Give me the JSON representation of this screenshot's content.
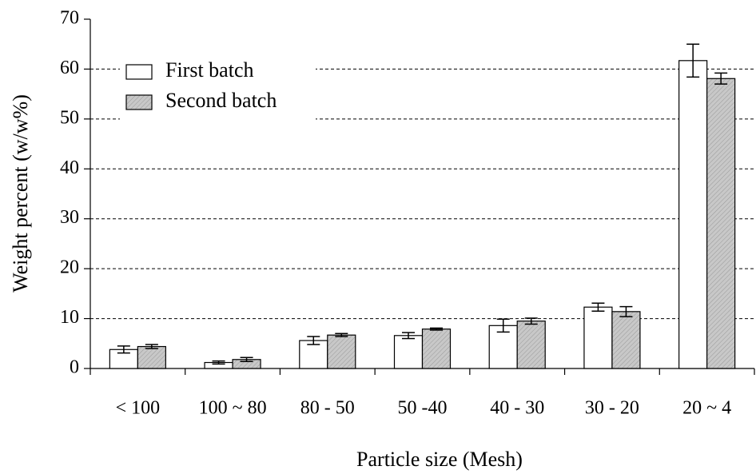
{
  "chart_data": {
    "type": "bar",
    "x_label": "Particle size (Mesh)",
    "y_label": "Weight percent (w/w%)",
    "categories": [
      "< 100",
      "100 ~ 80",
      "80 - 50",
      "50 -40",
      "40 - 30",
      "30 - 20",
      "20 ~ 4"
    ],
    "series": [
      {
        "name": "First batch",
        "color": "#ffffff",
        "values": [
          3.8,
          1.2,
          5.6,
          6.6,
          8.6,
          12.3,
          61.7
        ],
        "errors": [
          0.7,
          0.3,
          0.8,
          0.6,
          1.3,
          0.8,
          3.3
        ]
      },
      {
        "name": "Second batch",
        "color": "#c8c8c8",
        "values": [
          4.4,
          1.8,
          6.7,
          7.9,
          9.5,
          11.4,
          58.1
        ],
        "errors": [
          0.4,
          0.4,
          0.3,
          0.2,
          0.6,
          1.0,
          1.1
        ]
      }
    ],
    "ylim": [
      0,
      70
    ],
    "yticks": [
      0,
      10,
      20,
      30,
      40,
      50,
      60,
      70
    ],
    "grid": true,
    "legend": "upper-left"
  }
}
